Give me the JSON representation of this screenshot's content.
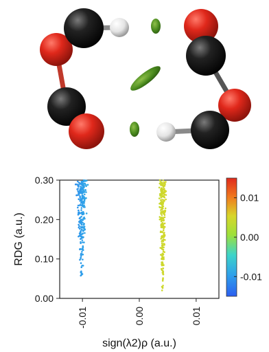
{
  "molecule": {
    "atoms": [
      "carbon",
      "oxygen",
      "hydrogen"
    ],
    "colors": {
      "carbon": "#1a1a1a",
      "oxygen": "#d8261a",
      "hydrogen": "#e6e6e6",
      "isosurface": "#4d8a1f"
    }
  },
  "chart_data": {
    "type": "scatter",
    "xlabel": "sign(λ2)ρ (a.u.)",
    "ylabel": "RDG (a.u.)",
    "xlim": [
      -0.014,
      0.014
    ],
    "ylim": [
      0.0,
      0.3
    ],
    "xticks": [
      "-0.01",
      "0.00",
      "0.01"
    ],
    "xtick_values": [
      -0.01,
      0.0,
      0.01
    ],
    "yticks": [
      "0.00",
      "0.10",
      "0.20",
      "0.30"
    ],
    "ytick_values": [
      0.0,
      0.1,
      0.2,
      0.3
    ],
    "grid": false,
    "colorbar": {
      "range": [
        -0.015,
        0.015
      ],
      "ticks": [
        "0.01",
        "0.00",
        "-0.01"
      ],
      "tick_values": [
        0.01,
        0.0,
        -0.01
      ],
      "colormap": [
        "#2b5ff0",
        "#2fa0ea",
        "#3dd4c9",
        "#9ee03a",
        "#d8d62a",
        "#f07a1e",
        "#e02a1c"
      ]
    },
    "series": [
      {
        "x_center": -0.0101,
        "x_spread_at_top": 0.0012,
        "x_spread_at_bottom": 0.0002,
        "y_min": 0.045,
        "y_max": 0.3,
        "count": 260
      },
      {
        "x_center": 0.0041,
        "x_spread_at_top": 0.0008,
        "x_spread_at_bottom": 0.0002,
        "y_min": 0.015,
        "y_max": 0.3,
        "count": 260
      }
    ]
  }
}
